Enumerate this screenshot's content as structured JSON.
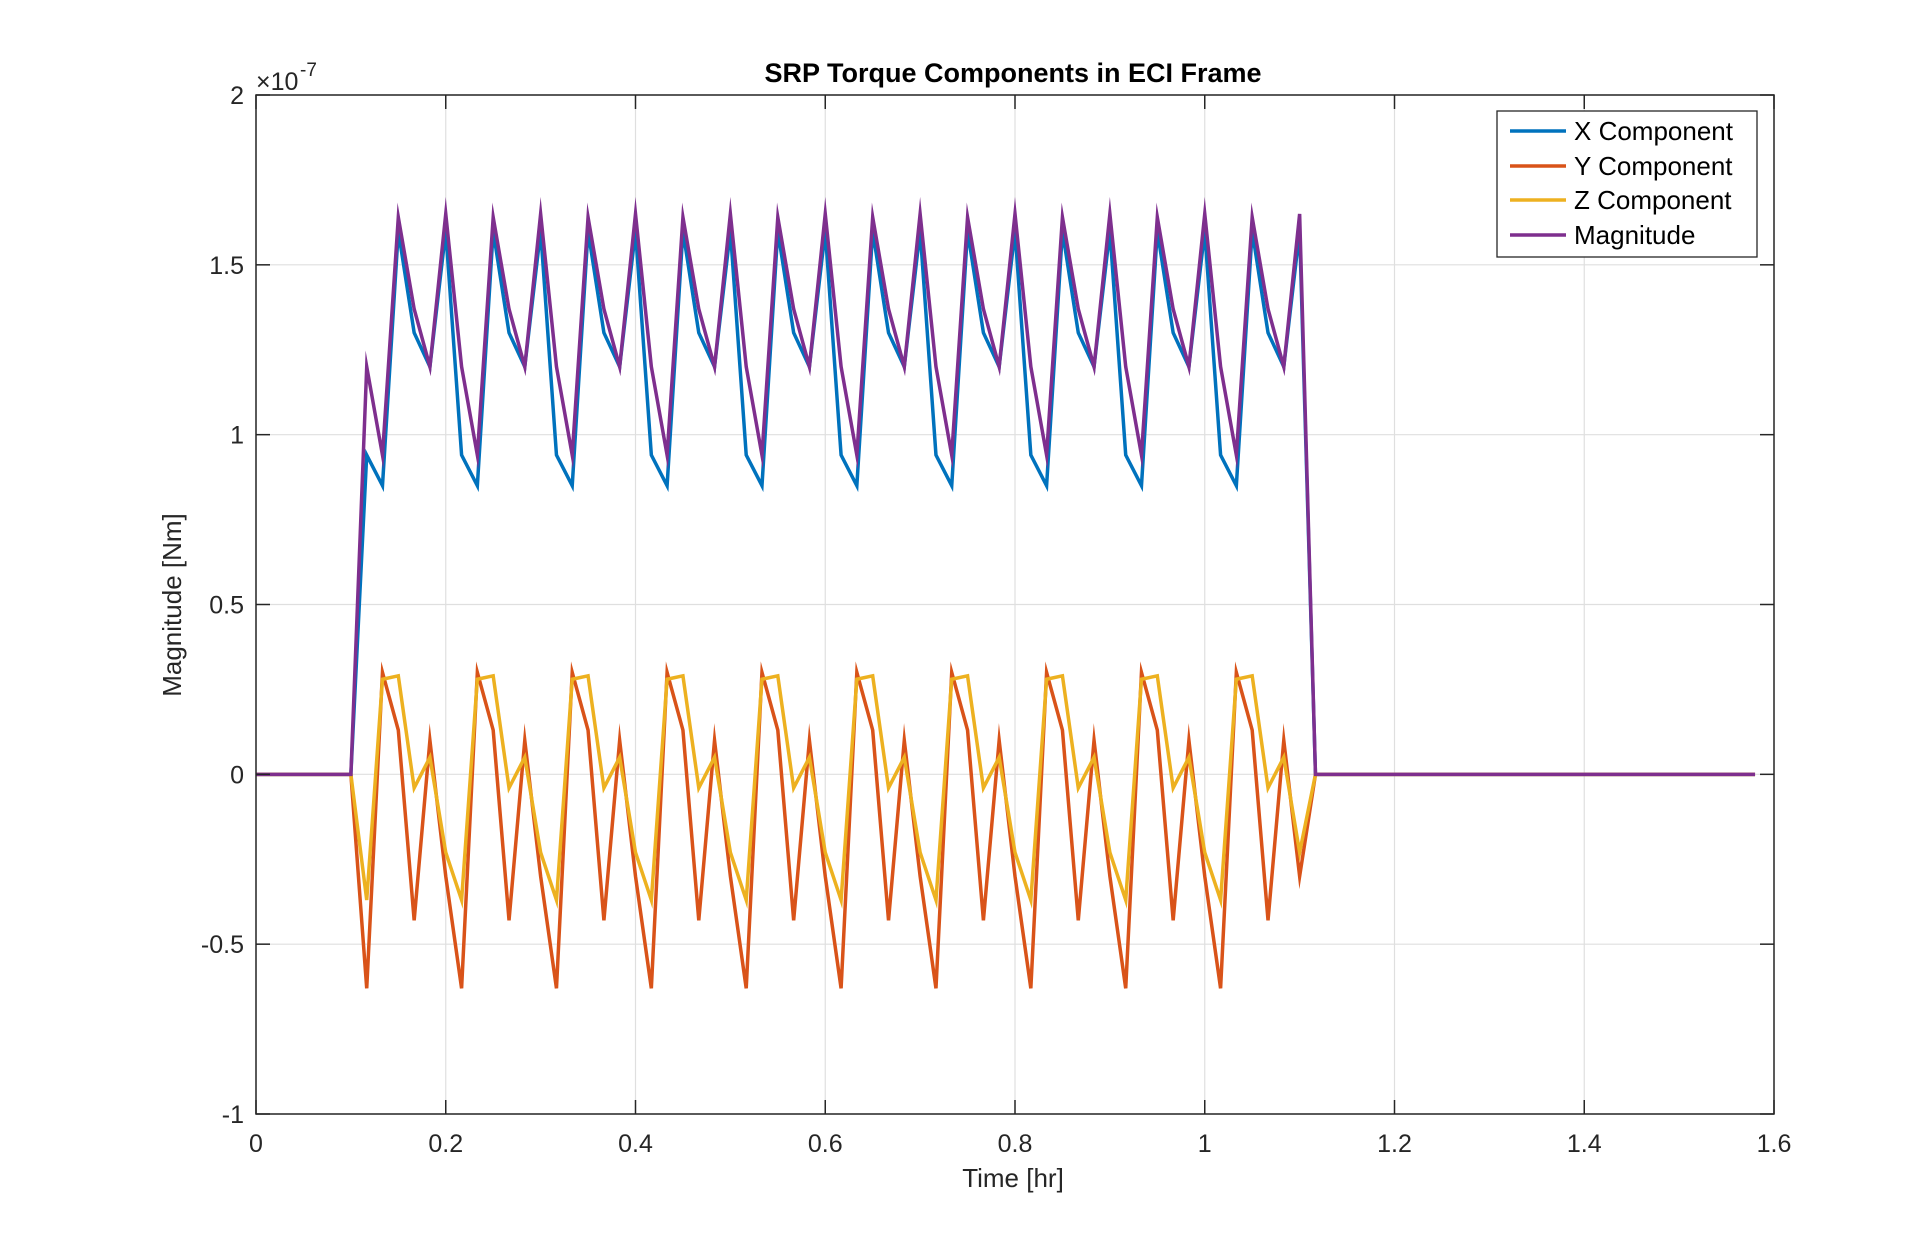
{
  "chart_data": {
    "type": "line",
    "title": "SRP Torque Components in ECI Frame",
    "xlabel": "Time [hr]",
    "ylabel": "Magnitude [Nm]",
    "y_exponent": {
      "base": "×10",
      "power": "-7"
    },
    "xlim": [
      0,
      1.6
    ],
    "ylim": [
      -1,
      2
    ],
    "xticks": [
      0,
      0.2,
      0.4,
      0.6,
      0.8,
      1,
      1.2,
      1.4,
      1.6
    ],
    "xtick_labels": [
      "0",
      "0.2",
      "0.4",
      "0.6",
      "0.8",
      "1",
      "1.2",
      "1.4",
      "1.6"
    ],
    "yticks": [
      -1,
      -0.5,
      0,
      0.5,
      1,
      1.5,
      2
    ],
    "ytick_labels": [
      "-1",
      "-0.5",
      "0",
      "0.5",
      "1",
      "1.5",
      "2"
    ],
    "grid": true,
    "legend_location": "top-right",
    "x": [
      0,
      0.1,
      0.1167,
      0.1333,
      0.15,
      0.1667,
      0.1833,
      0.2,
      0.2167,
      0.2333,
      0.25,
      0.2667,
      0.2833,
      0.3,
      0.3167,
      0.3333,
      0.35,
      0.3667,
      0.3833,
      0.4,
      0.4167,
      0.4333,
      0.45,
      0.4667,
      0.4833,
      0.5,
      0.5167,
      0.5333,
      0.55,
      0.5667,
      0.5833,
      0.6,
      0.6167,
      0.6333,
      0.65,
      0.6667,
      0.6833,
      0.7,
      0.7167,
      0.7333,
      0.75,
      0.7667,
      0.7833,
      0.8,
      0.8167,
      0.8333,
      0.85,
      0.8667,
      0.8833,
      0.9,
      0.9167,
      0.9333,
      0.95,
      0.9667,
      0.9833,
      1.0,
      1.0167,
      1.0333,
      1.05,
      1.0667,
      1.0833,
      1.1,
      1.1167,
      1.58
    ],
    "series": [
      {
        "name": "X Component",
        "color": "#0072BD",
        "values": [
          0,
          0,
          0.94,
          0.85,
          1.6,
          1.3,
          1.2,
          1.6,
          0.94,
          0.85,
          1.6,
          1.3,
          1.2,
          1.6,
          0.94,
          0.85,
          1.6,
          1.3,
          1.2,
          1.6,
          0.94,
          0.85,
          1.6,
          1.3,
          1.2,
          1.6,
          0.94,
          0.85,
          1.6,
          1.3,
          1.2,
          1.6,
          0.94,
          0.85,
          1.6,
          1.3,
          1.2,
          1.6,
          0.94,
          0.85,
          1.6,
          1.3,
          1.2,
          1.6,
          0.94,
          0.85,
          1.6,
          1.3,
          1.2,
          1.6,
          0.94,
          0.85,
          1.6,
          1.3,
          1.2,
          1.6,
          0.94,
          0.85,
          1.6,
          1.3,
          1.2,
          1.6,
          0,
          0
        ]
      },
      {
        "name": "Y Component",
        "color": "#D95319",
        "values": [
          0,
          0,
          -0.63,
          0.3,
          0.13,
          -0.43,
          0.1,
          -0.3,
          -0.63,
          0.3,
          0.13,
          -0.43,
          0.1,
          -0.3,
          -0.63,
          0.3,
          0.13,
          -0.43,
          0.1,
          -0.3,
          -0.63,
          0.3,
          0.13,
          -0.43,
          0.1,
          -0.3,
          -0.63,
          0.3,
          0.13,
          -0.43,
          0.1,
          -0.3,
          -0.63,
          0.3,
          0.13,
          -0.43,
          0.1,
          -0.3,
          -0.63,
          0.3,
          0.13,
          -0.43,
          0.1,
          -0.3,
          -0.63,
          0.3,
          0.13,
          -0.43,
          0.1,
          -0.3,
          -0.63,
          0.3,
          0.13,
          -0.43,
          0.1,
          -0.3,
          -0.63,
          0.3,
          0.13,
          -0.43,
          0.1,
          -0.3,
          0,
          0
        ]
      },
      {
        "name": "Z Component",
        "color": "#EDB120",
        "values": [
          0,
          0,
          -0.37,
          0.28,
          0.29,
          -0.04,
          0.05,
          -0.23,
          -0.37,
          0.28,
          0.29,
          -0.04,
          0.05,
          -0.23,
          -0.37,
          0.28,
          0.29,
          -0.04,
          0.05,
          -0.23,
          -0.37,
          0.28,
          0.29,
          -0.04,
          0.05,
          -0.23,
          -0.37,
          0.28,
          0.29,
          -0.04,
          0.05,
          -0.23,
          -0.37,
          0.28,
          0.29,
          -0.04,
          0.05,
          -0.23,
          -0.37,
          0.28,
          0.29,
          -0.04,
          0.05,
          -0.23,
          -0.37,
          0.28,
          0.29,
          -0.04,
          0.05,
          -0.23,
          -0.37,
          0.28,
          0.29,
          -0.04,
          0.05,
          -0.23,
          -0.37,
          0.28,
          0.29,
          -0.04,
          0.05,
          -0.23,
          0,
          0
        ]
      },
      {
        "name": "Magnitude",
        "color": "#7E2F8E",
        "values": [
          0,
          0,
          1.2,
          0.94,
          1.64,
          1.37,
          1.2,
          1.65,
          1.2,
          0.94,
          1.64,
          1.37,
          1.2,
          1.65,
          1.2,
          0.94,
          1.64,
          1.37,
          1.2,
          1.65,
          1.2,
          0.94,
          1.64,
          1.37,
          1.2,
          1.65,
          1.2,
          0.94,
          1.64,
          1.37,
          1.2,
          1.65,
          1.2,
          0.94,
          1.64,
          1.37,
          1.2,
          1.65,
          1.2,
          0.94,
          1.64,
          1.37,
          1.2,
          1.65,
          1.2,
          0.94,
          1.64,
          1.37,
          1.2,
          1.65,
          1.2,
          0.94,
          1.64,
          1.37,
          1.2,
          1.65,
          1.2,
          0.94,
          1.64,
          1.37,
          1.2,
          1.65,
          0,
          0
        ]
      }
    ]
  }
}
